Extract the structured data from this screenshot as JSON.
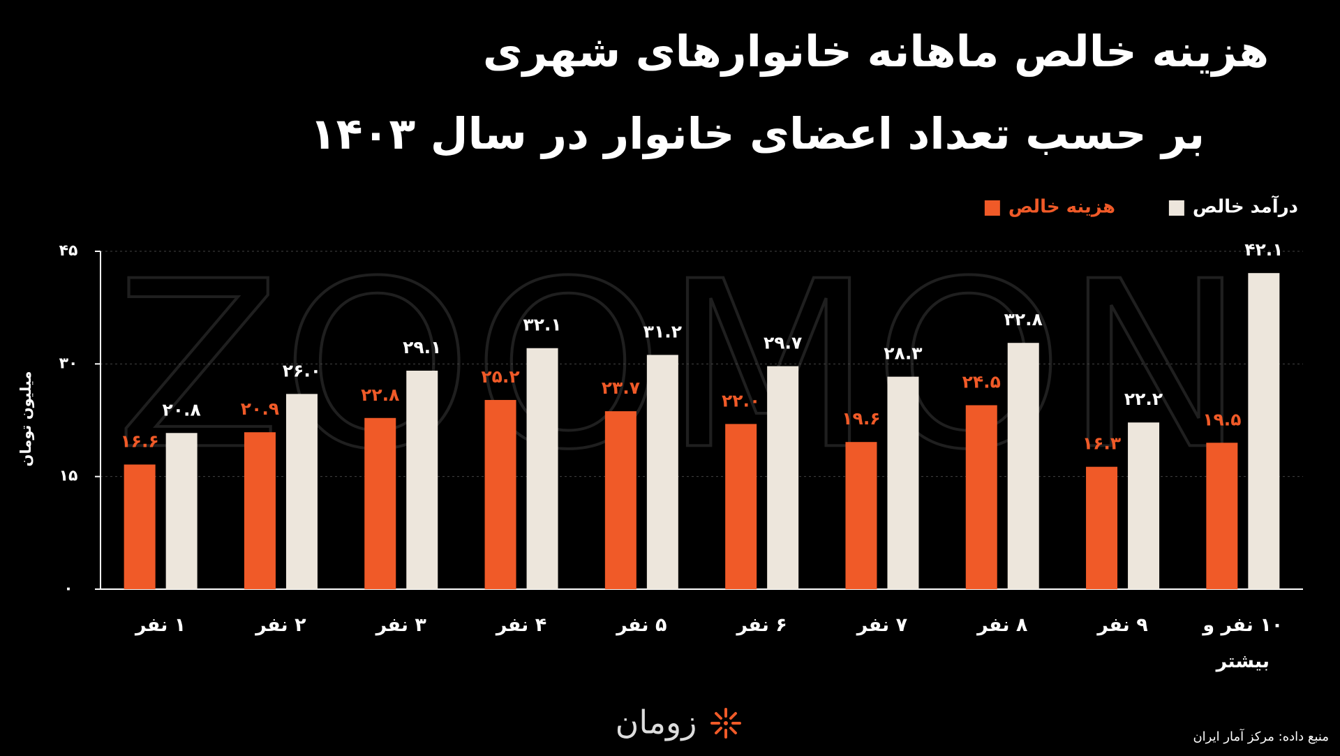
{
  "chart_data": {
    "type": "bar",
    "title_lines": [
      "هزینه خالص ماهانه خانوارهای شهری",
      "بر حسب تعداد اعضای خانوار در سال ۱۴۰۳"
    ],
    "y_label": "میلیون تومان",
    "watermark": "ZOOMON",
    "brand": "زومان",
    "source": "منبع داده: مرکز آمار ایران",
    "categories": [
      "۱ نفر",
      "۲ نفر",
      "۳ نفر",
      "۴ نفر",
      "۵ نفر",
      "۶ نفر",
      "۷ نفر",
      "۸ نفر",
      "۹ نفر",
      "۱۰ نفر و بیشتر"
    ],
    "series": [
      {
        "name": "هزینه خالص",
        "color": "#f05a28",
        "values": [
          16.6,
          20.9,
          22.8,
          25.2,
          23.7,
          22.0,
          19.6,
          24.5,
          16.3,
          19.5
        ],
        "value_labels": [
          "۱۶.۶",
          "۲۰.۹",
          "۲۲.۸",
          "۲۵.۲",
          "۲۳.۷",
          "۲۲.۰",
          "۱۹.۶",
          "۲۴.۵",
          "۱۶.۳",
          "۱۹.۵"
        ]
      },
      {
        "name": "درآمد خالص",
        "color": "#ede6dc",
        "values": [
          20.8,
          26.0,
          29.1,
          32.1,
          31.2,
          29.7,
          28.3,
          32.8,
          22.2,
          42.1
        ],
        "value_labels": [
          "۲۰.۸",
          "۲۶.۰",
          "۲۹.۱",
          "۳۲.۱",
          "۳۱.۲",
          "۲۹.۷",
          "۲۸.۳",
          "۳۲.۸",
          "۲۲.۲",
          "۴۲.۱"
        ]
      }
    ],
    "ylim": [
      0,
      45
    ],
    "yticks": [
      {
        "value": 0,
        "label": "۰"
      },
      {
        "value": 15,
        "label": "۱۵"
      },
      {
        "value": 30,
        "label": "۳۰"
      },
      {
        "value": 45,
        "label": "۴۵"
      }
    ],
    "grid": true
  }
}
